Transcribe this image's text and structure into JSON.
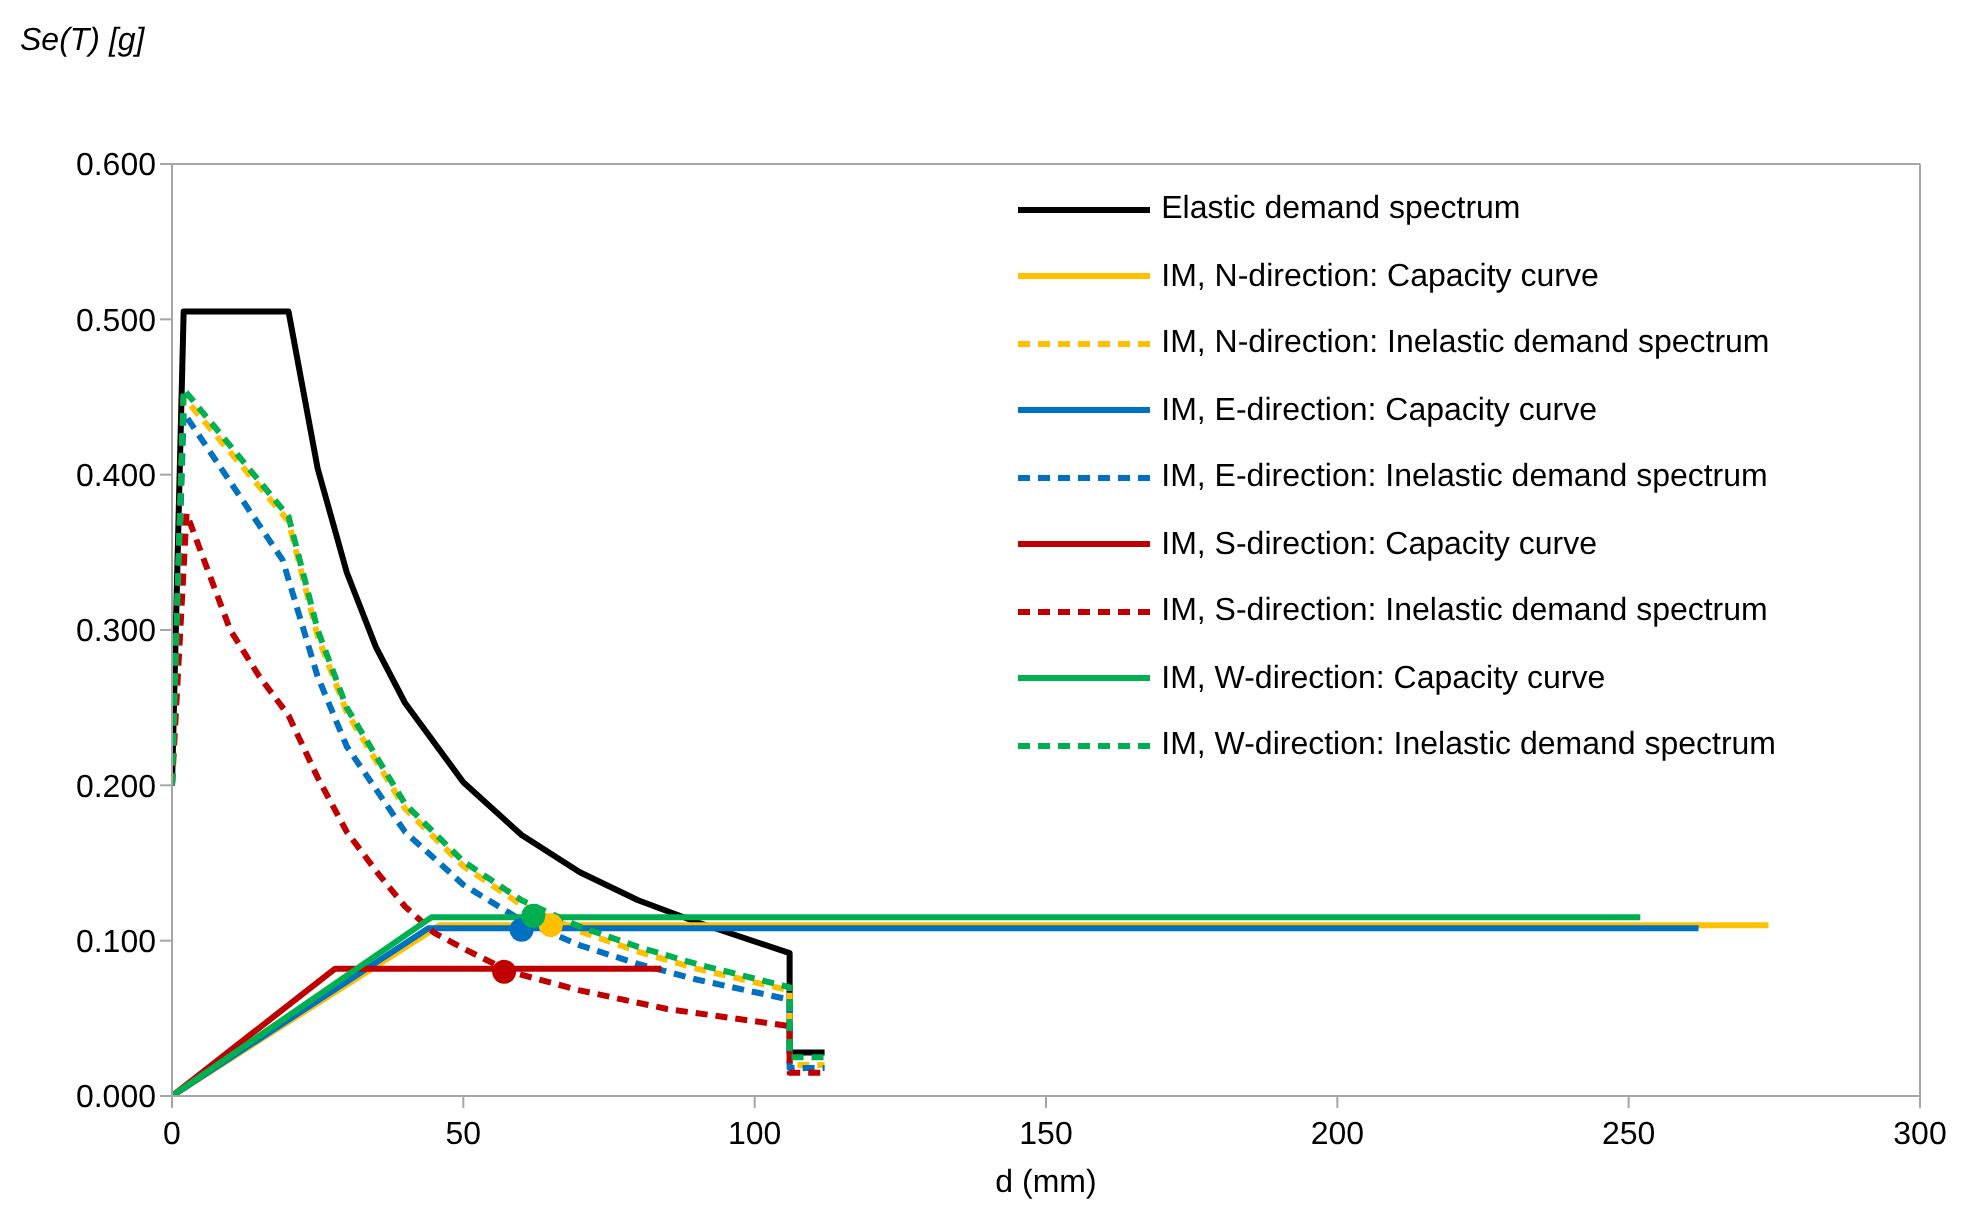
{
  "chart_data": {
    "type": "line",
    "ylabel": "Se(T) [g]",
    "xlabel": "d (mm)",
    "xlim": [
      0,
      300
    ],
    "xticks": [
      0,
      50,
      100,
      150,
      200,
      250,
      300
    ],
    "ylim": [
      0,
      0.6
    ],
    "yticks": [
      {
        "value": 0,
        "label": "0.000"
      },
      {
        "value": 0.1,
        "label": "0.100"
      },
      {
        "value": 0.2,
        "label": "0.200"
      },
      {
        "value": 0.3,
        "label": "0.300"
      },
      {
        "value": 0.4,
        "label": "0.400"
      },
      {
        "value": 0.5,
        "label": "0.500"
      },
      {
        "value": 0.6,
        "label": "0.600"
      }
    ],
    "grid": false,
    "legend": "top right",
    "marker": "none",
    "series": [
      {
        "name": "Elastic demand spectrum",
        "color": "#000000",
        "line_style": "solid",
        "x": [
          0,
          2,
          20,
          25,
          30,
          35,
          40,
          50,
          60,
          70,
          80,
          90,
          106,
          106,
          112
        ],
        "values": [
          0.2,
          0.505,
          0.505,
          0.404,
          0.337,
          0.289,
          0.253,
          0.202,
          0.168,
          0.144,
          0.126,
          0.112,
          0.092,
          0.028,
          0.028
        ]
      },
      {
        "name": "IM, N-direction: Capacity curve",
        "color": "#ffc000",
        "line_style": "solid",
        "x": [
          0,
          46,
          274
        ],
        "values": [
          0,
          0.11,
          0.11
        ]
      },
      {
        "name": "IM, N-direction: Inelastic demand spectrum",
        "color": "#ffc000",
        "line_style": "dashed",
        "x": [
          0,
          2,
          20,
          25,
          30,
          40,
          50,
          60,
          70,
          80,
          90,
          106,
          106,
          112
        ],
        "values": [
          0.2,
          0.45,
          0.37,
          0.296,
          0.247,
          0.185,
          0.148,
          0.123,
          0.106,
          0.093,
          0.082,
          0.068,
          0.02,
          0.02
        ]
      },
      {
        "name": "IM, E-direction: Capacity curve",
        "color": "#0070c0",
        "line_style": "solid",
        "x": [
          0,
          44,
          262
        ],
        "values": [
          0,
          0.108,
          0.108
        ]
      },
      {
        "name": "IM, E-direction: Inelastic demand spectrum",
        "color": "#0070c0",
        "line_style": "dashed",
        "x": [
          0,
          2,
          19,
          25,
          30,
          40,
          50,
          60,
          70,
          80,
          90,
          106,
          106,
          112
        ],
        "values": [
          0.2,
          0.44,
          0.345,
          0.27,
          0.225,
          0.17,
          0.136,
          0.113,
          0.097,
          0.085,
          0.075,
          0.062,
          0.018,
          0.018
        ]
      },
      {
        "name": "IM, S-direction: Capacity curve",
        "color": "#c00000",
        "line_style": "solid",
        "x": [
          0,
          28,
          84
        ],
        "values": [
          0,
          0.082,
          0.082
        ]
      },
      {
        "name": "IM, S-direction: Inelastic demand spectrum",
        "color": "#c00000",
        "line_style": "dashed",
        "x": [
          0,
          2.5,
          5,
          10,
          15,
          20,
          25,
          30,
          35,
          40,
          45,
          50,
          58,
          70,
          85,
          106,
          106,
          112
        ],
        "values": [
          0.2,
          0.375,
          0.35,
          0.3,
          0.27,
          0.245,
          0.205,
          0.17,
          0.145,
          0.122,
          0.105,
          0.095,
          0.08,
          0.068,
          0.056,
          0.045,
          0.015,
          0.015
        ]
      },
      {
        "name": "IM, W-direction: Capacity curve",
        "color": "#00b050",
        "line_style": "solid",
        "x": [
          0,
          44.5,
          252
        ],
        "values": [
          0,
          0.115,
          0.115
        ]
      },
      {
        "name": "IM, W-direction: Inelastic demand spectrum",
        "color": "#00b050",
        "line_style": "dashed",
        "x": [
          0,
          2,
          20,
          25,
          30,
          40,
          50,
          60,
          70,
          80,
          90,
          106,
          106,
          112
        ],
        "values": [
          0.2,
          0.455,
          0.373,
          0.3,
          0.25,
          0.188,
          0.151,
          0.126,
          0.109,
          0.096,
          0.085,
          0.07,
          0.025,
          0.025
        ]
      },
      {
        "type": "scatter",
        "color": "#0070c0",
        "marker": "circle",
        "x": [
          60
        ],
        "values": [
          0.107
        ]
      },
      {
        "type": "scatter",
        "color": "#c00000",
        "marker": "circle",
        "x": [
          57
        ],
        "values": [
          0.08
        ]
      },
      {
        "type": "scatter",
        "color": "#ffc000",
        "marker": "circle",
        "x": [
          65
        ],
        "values": [
          0.11
        ]
      },
      {
        "type": "scatter",
        "color": "#00b050",
        "marker": "circle",
        "x": [
          62
        ],
        "values": [
          0.116
        ]
      }
    ]
  }
}
